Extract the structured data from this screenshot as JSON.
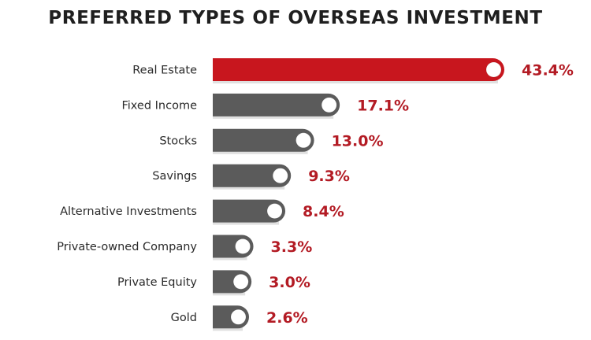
{
  "chart_data": {
    "type": "bar",
    "orientation": "horizontal",
    "title": "PREFERRED TYPES OF OVERSEAS INVESTMENT",
    "categories": [
      "Real Estate",
      "Fixed Income",
      "Stocks",
      "Savings",
      "Alternative Investments",
      "Private-owned Company",
      "Private Equity",
      "Gold"
    ],
    "values": [
      43.4,
      17.1,
      13.0,
      9.3,
      8.4,
      3.3,
      3.0,
      2.6
    ],
    "value_labels": [
      "43.4%",
      "17.1%",
      "13.0%",
      "9.3%",
      "8.4%",
      "3.3%",
      "3.0%",
      "2.6%"
    ],
    "unit": "%",
    "highlight_index": 0,
    "colors": {
      "highlight": "#c8161e",
      "bar": "#5b5b5b",
      "value_text": "#b31b24",
      "knob": "#ffffff"
    },
    "grid": false,
    "legend": "none"
  }
}
